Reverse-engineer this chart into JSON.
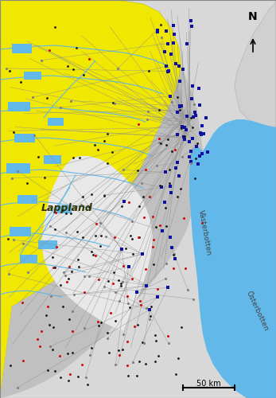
{
  "background_color": "#d8d8d8",
  "lappland_color": "#f0e800",
  "water_color": "#62b8e8",
  "gulf_color": "#62b8e8",
  "river_color": "#62b8e8",
  "vasterbotten_grey": "#c0c0c0",
  "light_grey": "#d0d0d0",
  "white_region": "#f0f0f0",
  "line_color": "#888888",
  "label_lappland": "Lappland",
  "label_vasterbotten": "Västerbotten",
  "label_osterbotten": "Österbotten",
  "figsize": [
    3.47,
    5.0
  ],
  "dpi": 100
}
